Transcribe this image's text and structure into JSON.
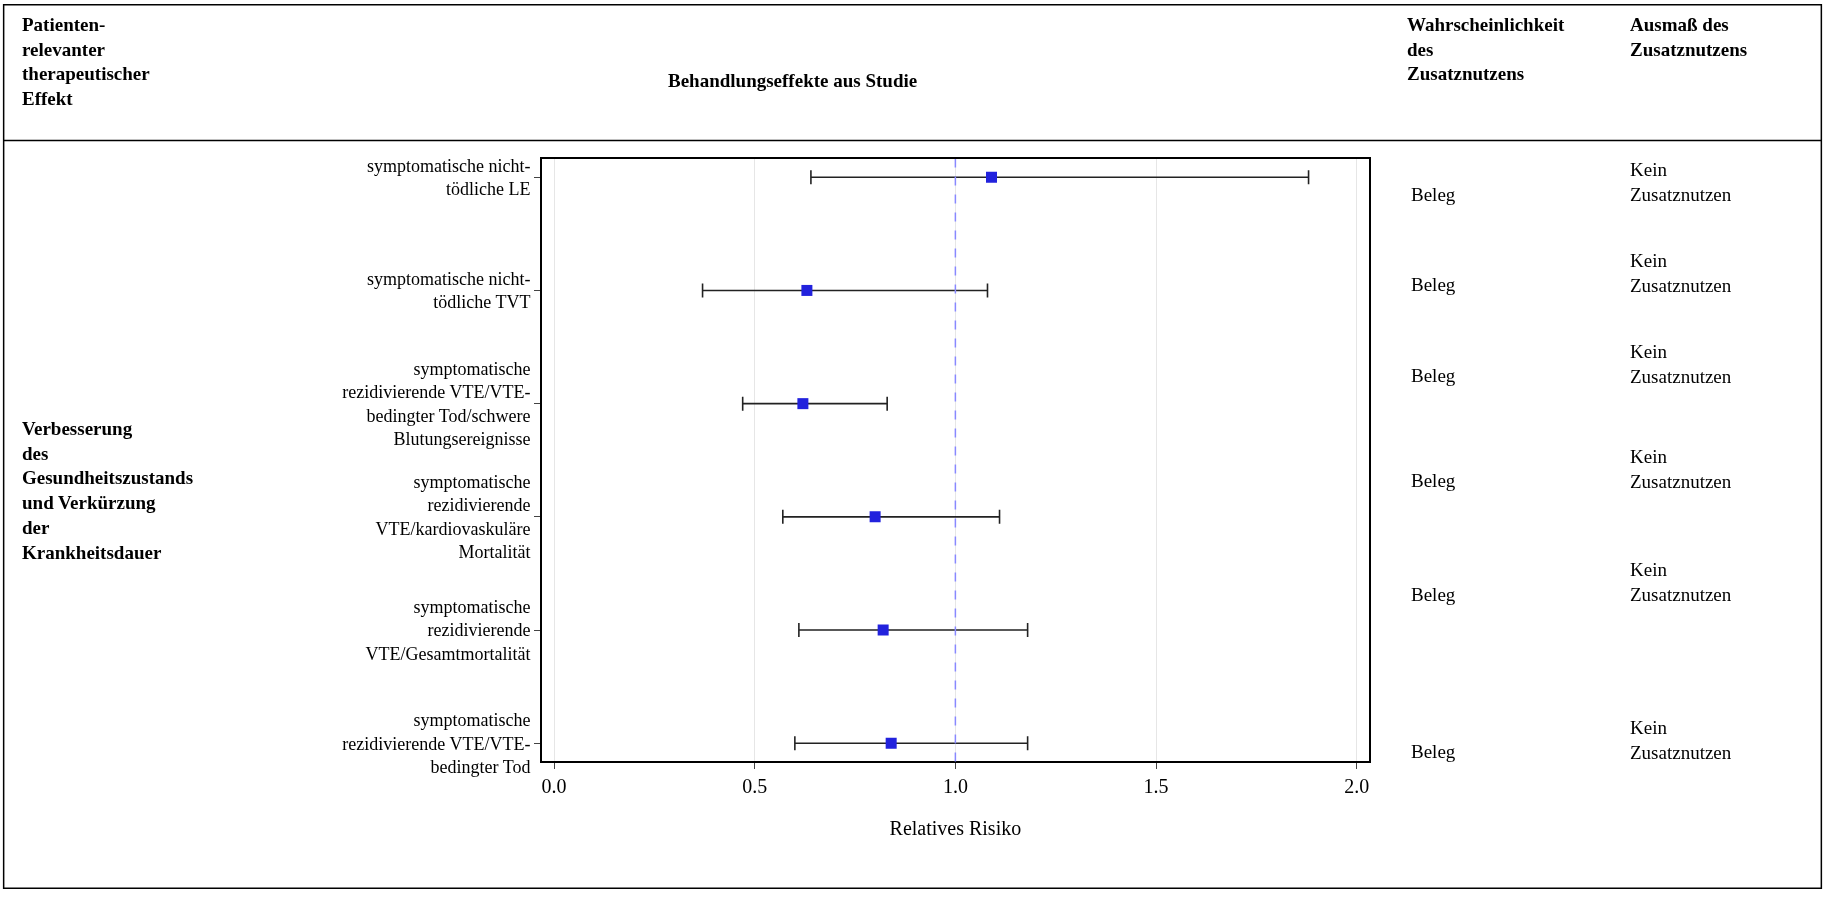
{
  "chart_data": {
    "type": "scatter",
    "orientation": "horizontal",
    "title": "Behandlungseffekte aus Studie",
    "xlabel": "Relatives Risiko",
    "categories": [
      "symptomatische nicht-tödliche LE",
      "symptomatische nicht-tödliche TVT",
      "symptomatische rezidivierende VTE/VTE-bedingter Tod/schwere Blutungsereignisse",
      "symptomatische rezidivierende VTE/kardiovaskuläre Mortalität",
      "symptomatische rezidivierende VTE/Gesamtmortalität",
      "symptomatische rezidivierende VTE/VTE-bedingter Tod"
    ],
    "series": [
      {
        "color": "#2222dd",
        "values": [
          1.09,
          0.63,
          0.62,
          0.8,
          0.82,
          0.84
        ],
        "errors": [
          [
            0.64,
            1.88
          ],
          [
            0.37,
            1.08
          ],
          [
            0.47,
            0.83
          ],
          [
            0.57,
            1.11
          ],
          [
            0.61,
            1.18
          ],
          [
            0.6,
            1.18
          ]
        ]
      }
    ],
    "xlim": [
      -0.03,
      2.03
    ],
    "xticks": [
      {
        "value": 0,
        "label": "0.0"
      },
      {
        "value": 0.5,
        "label": "0.5"
      },
      {
        "value": 1,
        "label": "1.0"
      },
      {
        "value": 1.5,
        "label": "1.5"
      },
      {
        "value": 2,
        "label": "2.0"
      }
    ],
    "grid": "x",
    "marker": "square",
    "ref_lines": [
      {
        "axis": "x",
        "value": 1,
        "color": "#8888ff",
        "line_style": "dashed"
      }
    ],
    "annotations": [
      "Patienten-relevanter therapeutischer Effekt",
      "Wahrscheinlichkeit des Zusatznutzens",
      "Ausmaß des Zusatznutzens",
      "Verbesserung des Gesundheitszustands und Verkürzung der Krankheitsdauer",
      "Beleg",
      "Kein Zusatznutzen",
      "Beleg",
      "Kein Zusatznutzen",
      "Beleg",
      "Kein Zusatznutzen",
      "Beleg",
      "Kein Zusatznutzen",
      "Beleg",
      "Kein Zusatznutzen",
      "Beleg",
      "Kein Zusatznutzen"
    ]
  }
}
